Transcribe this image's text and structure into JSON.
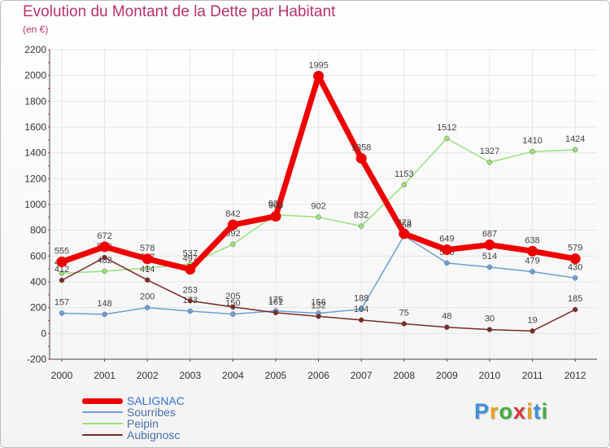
{
  "title": "Evolution du Montant de la Dette par Habitant",
  "subtitle": "(en €)",
  "logo": {
    "text": "Proxiti",
    "letter_colors": [
      "#3f8fd8",
      "#e8a020",
      "#3fae3f",
      "#d43a3a",
      "#e8a020",
      "#3f8fd8",
      "#3fae3f"
    ]
  },
  "chart_data": {
    "type": "line",
    "x": [
      "2000",
      "2001",
      "2002",
      "2003",
      "2004",
      "2005",
      "2006",
      "2007",
      "2008",
      "2009",
      "2010",
      "2011",
      "2012"
    ],
    "ylim": [
      -200,
      2200
    ],
    "yticks": [
      "-200",
      "0",
      "200",
      "400",
      "600",
      "800",
      "1000",
      "1200",
      "1400",
      "1600",
      "1800",
      "2000",
      "2200"
    ],
    "grid": true,
    "legend_position": "bottom-left",
    "series": [
      {
        "name": "Sourribes",
        "color": "#6aa0d6",
        "values": [
          157,
          148,
          200,
          173,
          150,
          175,
          156,
          188,
          758,
          546,
          514,
          479,
          430
        ],
        "labels": [
          "157",
          "148",
          "200",
          "173",
          "150",
          "175",
          "156",
          "188",
          "758",
          "546",
          "514",
          "479",
          "430"
        ]
      },
      {
        "name": "Peipin",
        "color": "#9be07a",
        "values": [
          467,
          482,
          507,
          537,
          692,
          920,
          902,
          832,
          1153,
          1512,
          1327,
          1410,
          1424
        ],
        "labels": [
          "467",
          "482",
          "507",
          "537",
          "692",
          "920",
          "902",
          "832",
          "1153",
          "1512",
          "1327",
          "1410",
          "1424"
        ]
      },
      {
        "name": "Aubignosc",
        "color": "#7a2a2a",
        "values": [
          412,
          589,
          414,
          253,
          205,
          161,
          132,
          104,
          75,
          48,
          30,
          19,
          185
        ],
        "labels": [
          "412",
          "589",
          "414",
          "253",
          "205",
          "161",
          "132",
          "104",
          "75",
          "48",
          "30",
          "19",
          "185"
        ]
      },
      {
        "name": "SALIGNAC",
        "color": "#ee0000",
        "values": [
          555,
          672,
          578,
          497,
          842,
          908,
          1995,
          1358,
          773,
          649,
          687,
          638,
          579
        ],
        "labels": [
          "555",
          "672",
          "578",
          "497",
          "842",
          "908",
          "1995",
          "1358",
          "773",
          "649",
          "687",
          "638",
          "579"
        ]
      }
    ],
    "legend_order": [
      "SALIGNAC",
      "Sourribes",
      "Peipin",
      "Aubignosc"
    ]
  }
}
